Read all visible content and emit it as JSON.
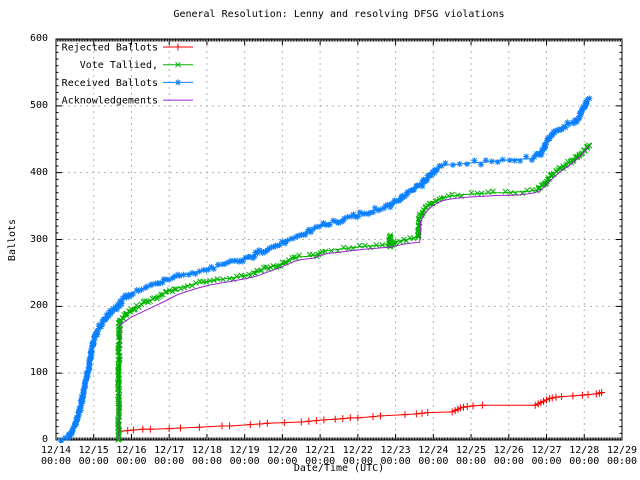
{
  "chart_data": {
    "type": "line",
    "title": "General Resolution: Lenny and resolving DFSG violations",
    "xlabel": "Date/Time (UTC)",
    "ylabel": "Ballots",
    "xlim": [
      14,
      29
    ],
    "ylim": [
      0,
      600
    ],
    "grid": true,
    "legend_position": "top-left",
    "x_unit": "day of December, UTC",
    "y_ticks": [
      0,
      100,
      200,
      300,
      400,
      500,
      600
    ],
    "x_ticks": [
      {
        "day": 14,
        "l1": "12/14",
        "l2": "00:00"
      },
      {
        "day": 15,
        "l1": "12/15",
        "l2": "00:00"
      },
      {
        "day": 16,
        "l1": "12/16",
        "l2": "00:00"
      },
      {
        "day": 17,
        "l1": "12/17",
        "l2": "00:00"
      },
      {
        "day": 18,
        "l1": "12/18",
        "l2": "00:00"
      },
      {
        "day": 19,
        "l1": "12/19",
        "l2": "00:00"
      },
      {
        "day": 20,
        "l1": "12/20",
        "l2": "00:00"
      },
      {
        "day": 21,
        "l1": "12/21",
        "l2": "00:00"
      },
      {
        "day": 22,
        "l1": "12/22",
        "l2": "00:00"
      },
      {
        "day": 23,
        "l1": "12/23",
        "l2": "00:00"
      },
      {
        "day": 24,
        "l1": "12/24",
        "l2": "00:00"
      },
      {
        "day": 25,
        "l1": "12/25",
        "l2": "00:00"
      },
      {
        "day": 26,
        "l1": "12/26",
        "l2": "00:00"
      },
      {
        "day": 27,
        "l1": "12/27",
        "l2": "00:00"
      },
      {
        "day": 28,
        "l1": "12/28",
        "l2": "00:00"
      },
      {
        "day": 29,
        "l1": "12/29",
        "l2": "00:00"
      }
    ],
    "colors": {
      "border": "#000000",
      "grid": "#b4b4b4",
      "background": "#ffffff"
    },
    "series": [
      {
        "name": "Rejected Ballots",
        "color": "#ff0000",
        "marker": "plus",
        "marker_mode": "points",
        "points": [
          [
            15.7,
            13
          ],
          [
            15.9,
            14
          ],
          [
            16.05,
            15
          ],
          [
            16.3,
            16
          ],
          [
            16.5,
            16
          ],
          [
            17.0,
            17
          ],
          [
            17.3,
            18
          ],
          [
            17.8,
            19
          ],
          [
            18.4,
            21
          ],
          [
            18.6,
            21
          ],
          [
            19.15,
            23
          ],
          [
            19.4,
            24
          ],
          [
            19.6,
            25
          ],
          [
            20.05,
            26
          ],
          [
            20.5,
            27
          ],
          [
            20.7,
            28
          ],
          [
            20.9,
            29
          ],
          [
            21.1,
            30
          ],
          [
            21.4,
            31
          ],
          [
            21.6,
            32
          ],
          [
            21.8,
            33
          ],
          [
            22.0,
            33
          ],
          [
            22.4,
            35
          ],
          [
            22.6,
            36
          ],
          [
            23.25,
            38
          ],
          [
            23.55,
            39
          ],
          [
            23.7,
            40
          ],
          [
            23.85,
            41
          ],
          [
            24.5,
            42
          ],
          [
            24.58,
            44
          ],
          [
            24.65,
            46
          ],
          [
            24.72,
            48
          ],
          [
            24.8,
            49
          ],
          [
            24.9,
            50
          ],
          [
            25.05,
            51
          ],
          [
            25.3,
            52
          ],
          [
            26.7,
            52
          ],
          [
            26.78,
            54
          ],
          [
            26.85,
            56
          ],
          [
            26.92,
            58
          ],
          [
            27.0,
            60
          ],
          [
            27.08,
            62
          ],
          [
            27.15,
            63
          ],
          [
            27.25,
            64
          ],
          [
            27.4,
            65
          ],
          [
            27.7,
            66
          ],
          [
            27.95,
            67
          ],
          [
            28.1,
            68
          ],
          [
            28.32,
            69
          ],
          [
            28.4,
            70
          ],
          [
            28.46,
            71
          ]
        ]
      },
      {
        "name": "Vote Tallied,",
        "color": "#00b400",
        "marker": "cross",
        "marker_mode": "band",
        "points": [
          [
            15.66,
            0
          ],
          [
            15.66,
            90
          ],
          [
            15.68,
            178
          ],
          [
            15.8,
            185
          ],
          [
            15.95,
            192
          ],
          [
            16.0,
            195
          ],
          [
            16.2,
            201
          ],
          [
            16.4,
            207
          ],
          [
            16.6,
            212
          ],
          [
            16.8,
            217
          ],
          [
            17.0,
            223
          ],
          [
            17.2,
            227
          ],
          [
            17.5,
            231
          ],
          [
            17.8,
            235
          ],
          [
            18.0,
            237
          ],
          [
            18.3,
            240
          ],
          [
            18.6,
            242
          ],
          [
            18.9,
            245
          ],
          [
            19.1,
            247
          ],
          [
            19.3,
            251
          ],
          [
            19.5,
            256
          ],
          [
            19.7,
            259
          ],
          [
            19.9,
            262
          ],
          [
            20.0,
            264
          ],
          [
            20.15,
            268
          ],
          [
            20.3,
            272
          ],
          [
            20.45,
            274
          ],
          [
            20.7,
            275
          ],
          [
            20.9,
            277
          ],
          [
            21.0,
            281
          ],
          [
            21.15,
            283
          ],
          [
            21.3,
            284
          ],
          [
            21.6,
            286
          ],
          [
            21.9,
            288
          ],
          [
            22.2,
            290
          ],
          [
            22.5,
            291
          ],
          [
            22.8,
            292
          ],
          [
            22.83,
            292
          ],
          [
            22.85,
            306
          ],
          [
            22.87,
            290
          ],
          [
            23.0,
            297
          ],
          [
            23.2,
            299
          ],
          [
            23.4,
            301
          ],
          [
            23.6,
            303
          ],
          [
            23.62,
            333
          ],
          [
            23.7,
            340
          ],
          [
            23.8,
            347
          ],
          [
            23.9,
            352
          ],
          [
            24.0,
            356
          ],
          [
            24.15,
            360
          ],
          [
            24.3,
            363
          ],
          [
            24.5,
            365
          ],
          [
            24.75,
            367
          ],
          [
            25.0,
            368
          ],
          [
            25.3,
            369
          ],
          [
            25.6,
            370
          ],
          [
            25.9,
            370
          ],
          [
            26.2,
            371
          ],
          [
            26.5,
            372
          ],
          [
            26.75,
            374
          ],
          [
            26.9,
            381
          ],
          [
            27.0,
            388
          ],
          [
            27.1,
            394
          ],
          [
            27.2,
            399
          ],
          [
            27.35,
            405
          ],
          [
            27.5,
            411
          ],
          [
            27.65,
            417
          ],
          [
            27.8,
            424
          ],
          [
            27.95,
            431
          ],
          [
            28.05,
            437
          ],
          [
            28.15,
            443
          ]
        ]
      },
      {
        "name": "Received Ballots",
        "color": "#0a80ff",
        "marker": "star",
        "marker_mode": "band",
        "points": [
          [
            14.02,
            0
          ],
          [
            14.15,
            1
          ],
          [
            14.3,
            4
          ],
          [
            14.42,
            12
          ],
          [
            14.52,
            25
          ],
          [
            14.62,
            43
          ],
          [
            14.7,
            62
          ],
          [
            14.78,
            85
          ],
          [
            14.85,
            105
          ],
          [
            14.92,
            126
          ],
          [
            15.0,
            150
          ],
          [
            15.1,
            164
          ],
          [
            15.25,
            177
          ],
          [
            15.4,
            187
          ],
          [
            15.55,
            196
          ],
          [
            15.7,
            205
          ],
          [
            15.85,
            213
          ],
          [
            16.0,
            220
          ],
          [
            16.2,
            224
          ],
          [
            16.5,
            230
          ],
          [
            16.8,
            237
          ],
          [
            17.0,
            241
          ],
          [
            17.3,
            246
          ],
          [
            17.6,
            250
          ],
          [
            17.9,
            254
          ],
          [
            18.1,
            257
          ],
          [
            18.4,
            261
          ],
          [
            18.7,
            266
          ],
          [
            18.9,
            269
          ],
          [
            19.1,
            273
          ],
          [
            19.3,
            278
          ],
          [
            19.5,
            283
          ],
          [
            19.7,
            288
          ],
          [
            19.85,
            292
          ],
          [
            20.0,
            295
          ],
          [
            20.15,
            299
          ],
          [
            20.35,
            303
          ],
          [
            20.55,
            309
          ],
          [
            20.75,
            314
          ],
          [
            20.9,
            317
          ],
          [
            21.05,
            320
          ],
          [
            21.2,
            324
          ],
          [
            21.4,
            327
          ],
          [
            21.6,
            330
          ],
          [
            21.8,
            333
          ],
          [
            22.0,
            337
          ],
          [
            22.2,
            340
          ],
          [
            22.4,
            343
          ],
          [
            22.6,
            346
          ],
          [
            22.8,
            350
          ],
          [
            22.95,
            355
          ],
          [
            23.1,
            360
          ],
          [
            23.25,
            367
          ],
          [
            23.4,
            372
          ],
          [
            23.55,
            377
          ],
          [
            23.7,
            383
          ],
          [
            23.85,
            392
          ],
          [
            23.95,
            399
          ],
          [
            24.05,
            404
          ],
          [
            24.15,
            408
          ],
          [
            24.3,
            411
          ],
          [
            24.5,
            412
          ],
          [
            24.7,
            413
          ],
          [
            24.9,
            414
          ],
          [
            25.1,
            415
          ],
          [
            25.4,
            416
          ],
          [
            25.7,
            418
          ],
          [
            26.0,
            419
          ],
          [
            26.3,
            420
          ],
          [
            26.6,
            421
          ],
          [
            26.8,
            426
          ],
          [
            26.95,
            439
          ],
          [
            27.05,
            450
          ],
          [
            27.15,
            457
          ],
          [
            27.3,
            464
          ],
          [
            27.45,
            470
          ],
          [
            27.6,
            474
          ],
          [
            27.75,
            476
          ],
          [
            27.85,
            482
          ],
          [
            27.95,
            493
          ],
          [
            28.05,
            504
          ],
          [
            28.13,
            510
          ]
        ]
      },
      {
        "name": "Acknowledgements",
        "color": "#a020d0",
        "marker": "none",
        "marker_mode": "none",
        "points": [
          [
            15.67,
            0
          ],
          [
            15.69,
            172
          ],
          [
            15.85,
            178
          ],
          [
            16.0,
            184
          ],
          [
            16.3,
            192
          ],
          [
            16.6,
            200
          ],
          [
            16.9,
            208
          ],
          [
            17.2,
            217
          ],
          [
            17.5,
            223
          ],
          [
            17.8,
            228
          ],
          [
            18.1,
            232
          ],
          [
            18.4,
            235
          ],
          [
            18.7,
            238
          ],
          [
            19.0,
            241
          ],
          [
            19.3,
            245
          ],
          [
            19.6,
            251
          ],
          [
            19.9,
            257
          ],
          [
            20.1,
            262
          ],
          [
            20.3,
            267
          ],
          [
            20.5,
            270
          ],
          [
            20.8,
            272
          ],
          [
            21.0,
            276
          ],
          [
            21.2,
            279
          ],
          [
            21.5,
            281
          ],
          [
            21.8,
            283
          ],
          [
            22.1,
            285
          ],
          [
            22.5,
            287
          ],
          [
            22.9,
            289
          ],
          [
            23.2,
            293
          ],
          [
            23.5,
            295
          ],
          [
            23.64,
            296
          ],
          [
            23.66,
            326
          ],
          [
            23.75,
            337
          ],
          [
            23.85,
            344
          ],
          [
            24.0,
            351
          ],
          [
            24.15,
            356
          ],
          [
            24.3,
            359
          ],
          [
            24.5,
            361
          ],
          [
            24.8,
            363
          ],
          [
            25.1,
            364
          ],
          [
            25.4,
            365
          ],
          [
            25.7,
            366
          ],
          [
            26.0,
            366
          ],
          [
            26.3,
            367
          ],
          [
            26.6,
            369
          ],
          [
            26.8,
            372
          ],
          [
            26.95,
            379
          ],
          [
            27.1,
            388
          ],
          [
            27.25,
            396
          ],
          [
            27.4,
            403
          ],
          [
            27.55,
            409
          ],
          [
            27.7,
            415
          ],
          [
            27.85,
            422
          ],
          [
            27.97,
            429
          ],
          [
            28.07,
            435
          ],
          [
            28.13,
            440
          ]
        ]
      }
    ]
  }
}
